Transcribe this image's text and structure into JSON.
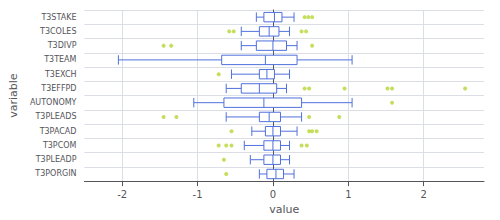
{
  "chart_data": {
    "type": "boxplot",
    "orientation": "horizontal",
    "categories": [
      "T3STAKE",
      "T3COLES",
      "T3DIVP",
      "T3TEAM",
      "T3EXCH",
      "T3EFFPD",
      "AUTONOMY",
      "T3PLEADS",
      "T3PACAD",
      "T3PCOM",
      "T3PLEADP",
      "T3PORGIN"
    ],
    "boxes": [
      {
        "q1": -0.12,
        "median": 0.02,
        "q3": 0.12,
        "whislo": -0.22,
        "whishi": 0.28,
        "fliers": [
          0.42,
          0.47,
          0.52
        ]
      },
      {
        "q1": -0.18,
        "median": -0.05,
        "q3": 0.08,
        "whislo": -0.42,
        "whishi": 0.22,
        "fliers": [
          -0.58,
          -0.52,
          0.38,
          0.44
        ]
      },
      {
        "q1": -0.22,
        "median": 0.0,
        "q3": 0.18,
        "whislo": -0.42,
        "whishi": 0.32,
        "fliers": [
          -1.45,
          -1.35,
          0.52
        ]
      },
      {
        "q1": -0.68,
        "median": -0.1,
        "q3": 0.32,
        "whislo": -2.05,
        "whishi": 1.05,
        "fliers": []
      },
      {
        "q1": -0.18,
        "median": -0.08,
        "q3": 0.02,
        "whislo": -0.55,
        "whishi": 0.22,
        "fliers": [
          -0.72
        ]
      },
      {
        "q1": -0.42,
        "median": -0.18,
        "q3": 0.05,
        "whislo": -0.62,
        "whishi": 0.18,
        "fliers": [
          0.42,
          0.48,
          0.95,
          1.52,
          1.58,
          2.55
        ]
      },
      {
        "q1": -0.65,
        "median": -0.12,
        "q3": 0.38,
        "whislo": -1.05,
        "whishi": 1.05,
        "fliers": [
          1.58
        ]
      },
      {
        "q1": -0.18,
        "median": -0.05,
        "q3": 0.1,
        "whislo": -0.62,
        "whishi": 0.38,
        "fliers": [
          -1.45,
          -1.28,
          0.48,
          0.88
        ]
      },
      {
        "q1": -0.1,
        "median": 0.0,
        "q3": 0.1,
        "whislo": -0.28,
        "whishi": 0.32,
        "fliers": [
          -0.55,
          0.48,
          0.52,
          0.58
        ]
      },
      {
        "q1": -0.12,
        "median": 0.0,
        "q3": 0.1,
        "whislo": -0.38,
        "whishi": 0.22,
        "fliers": [
          -0.72,
          -0.62,
          -0.55,
          0.38,
          0.45
        ]
      },
      {
        "q1": -0.12,
        "median": 0.0,
        "q3": 0.1,
        "whislo": -0.3,
        "whishi": 0.22,
        "fliers": [
          -0.65
        ]
      },
      {
        "q1": -0.08,
        "median": 0.04,
        "q3": 0.14,
        "whislo": -0.18,
        "whishi": 0.28,
        "fliers": [
          -0.62
        ]
      }
    ],
    "xlabel": "value",
    "ylabel": "variable",
    "xlim": [
      -2.5,
      2.8
    ],
    "xticks": [
      -2,
      -1,
      0,
      1,
      2
    ],
    "grid": true
  }
}
